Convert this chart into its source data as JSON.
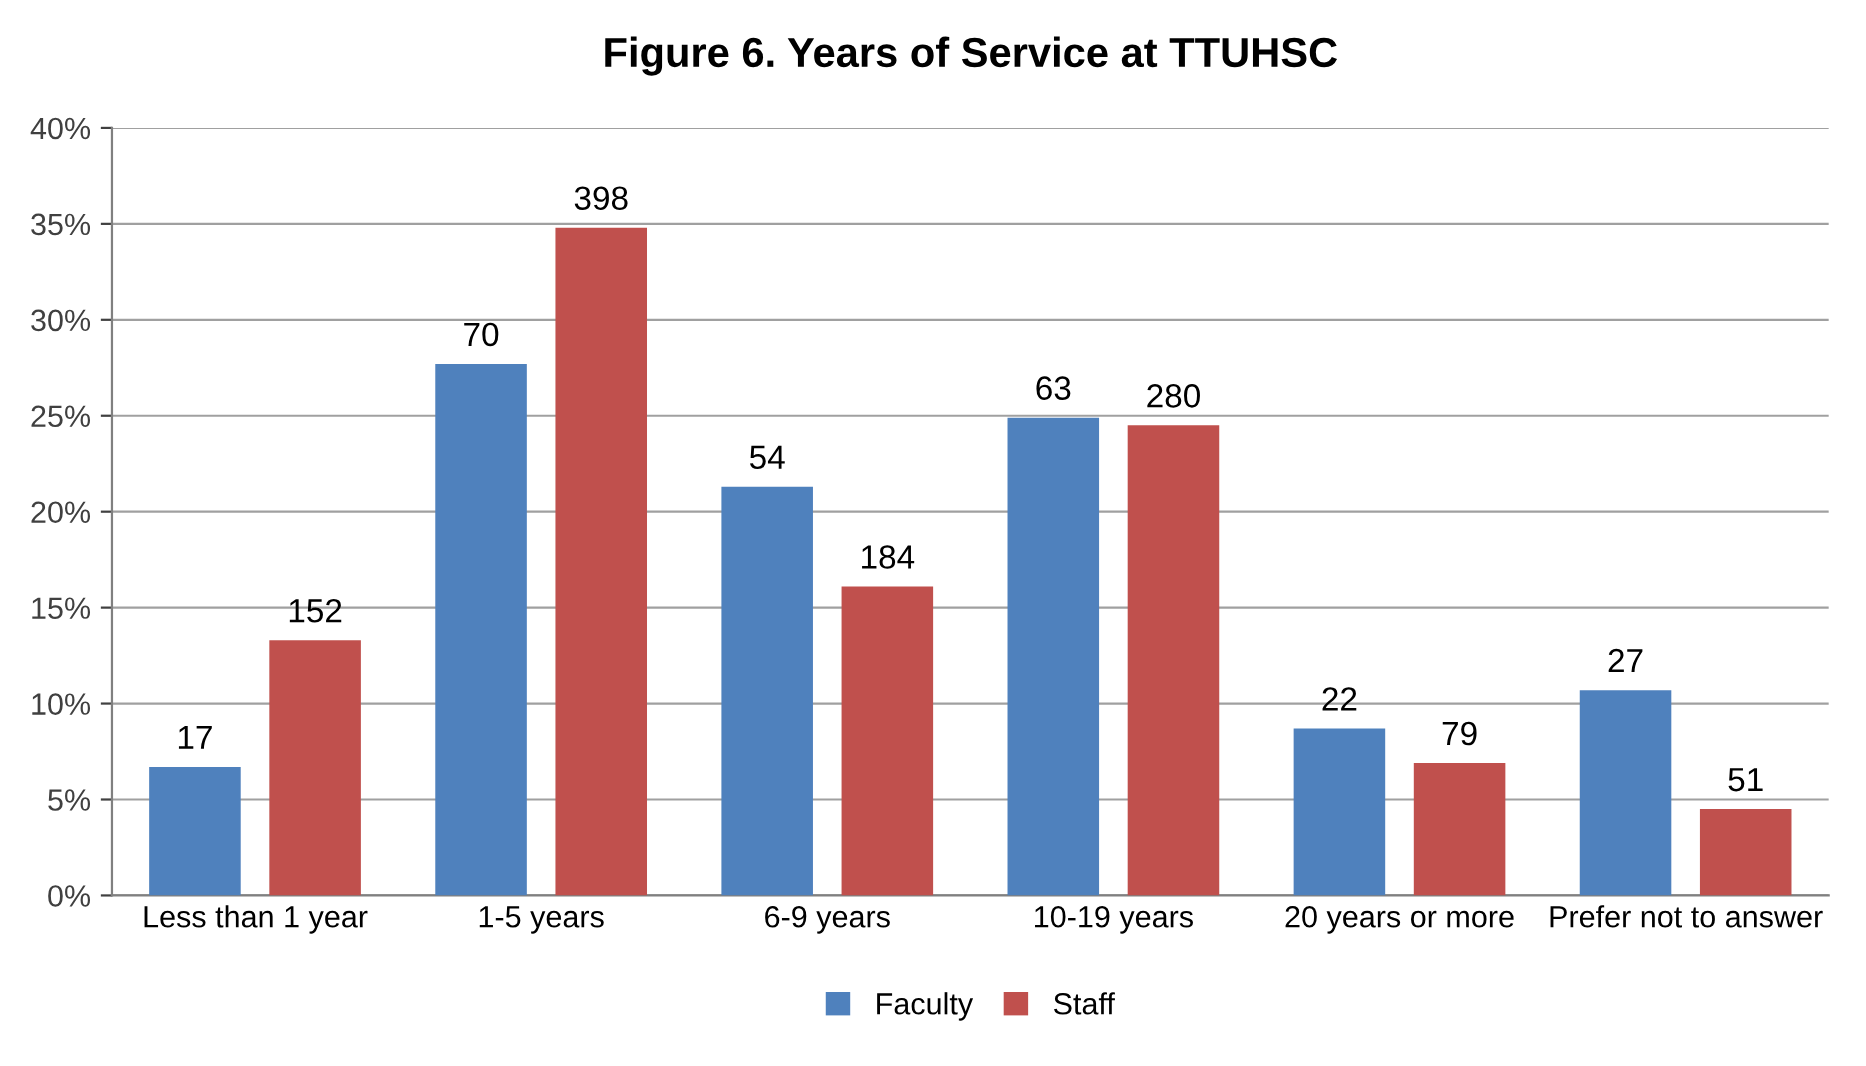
{
  "chart_data": {
    "type": "bar",
    "title": "Figure 6. Years of Service at TTUHSC",
    "categories": [
      "Less than 1 year",
      "1-5 years",
      "6-9 years",
      "10-19 years",
      "20 years or more",
      "Prefer not to answer"
    ],
    "series": [
      {
        "name": "Faculty",
        "color": "#4f81bd",
        "values": [
          6.7,
          27.7,
          21.3,
          24.9,
          8.7,
          10.7
        ]
      },
      {
        "name": "Staff",
        "color": "#c0504d",
        "values": [
          13.3,
          34.8,
          16.1,
          24.5,
          6.9,
          4.5
        ]
      }
    ],
    "annotations": [
      "17",
      "70",
      "54",
      "63",
      "22",
      "27",
      "152",
      "398",
      "184",
      "280",
      "79",
      "51"
    ],
    "ylim": [
      0,
      40
    ],
    "yticks": [
      {
        "value": 0,
        "label": "0%"
      },
      {
        "value": 5,
        "label": "5%"
      },
      {
        "value": 10,
        "label": "10%"
      },
      {
        "value": 15,
        "label": "15%"
      },
      {
        "value": 20,
        "label": "20%"
      },
      {
        "value": 25,
        "label": "25%"
      },
      {
        "value": 30,
        "label": "30%"
      },
      {
        "value": 35,
        "label": "35%"
      },
      {
        "value": 40,
        "label": "40%"
      }
    ],
    "grid": "y",
    "legend": "bottom"
  }
}
